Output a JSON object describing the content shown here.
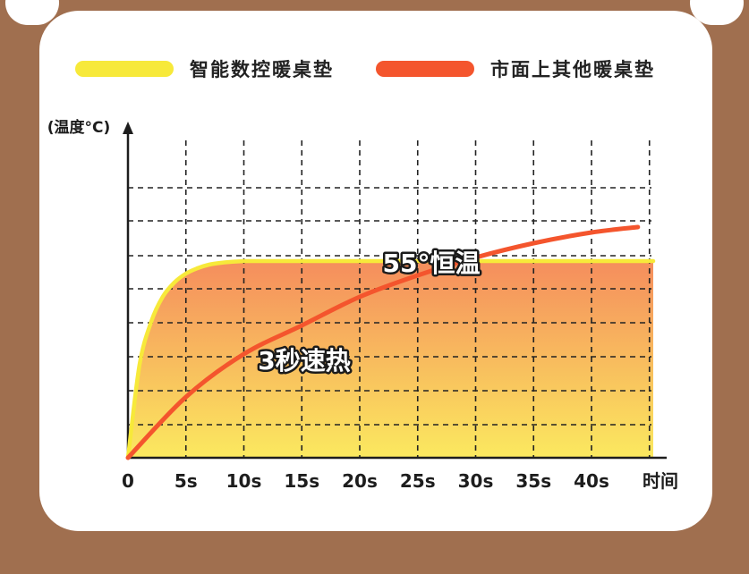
{
  "legend": [
    {
      "label": "智能数控暖桌垫",
      "color": "#f7e93a"
    },
    {
      "label": "市面上其他暖桌垫",
      "color": "#f4552d"
    }
  ],
  "chart_data": {
    "type": "line",
    "ylabel": "(温度°C)",
    "xlabel": "时间",
    "x_ticks": [
      "0",
      "5s",
      "10s",
      "15s",
      "20s",
      "25s",
      "30s",
      "35s",
      "40s"
    ],
    "grid": true,
    "series": [
      {
        "name": "智能数控暖桌垫",
        "color": "#f7e93a",
        "x": [
          0,
          1,
          2,
          3,
          4,
          5,
          6,
          7,
          8,
          9,
          10,
          45
        ],
        "y": [
          0,
          26,
          38,
          45,
          49,
          51.5,
          53,
          54,
          54.5,
          54.8,
          55,
          55
        ]
      },
      {
        "name": "市面上其他暖桌垫",
        "color": "#f4552d",
        "x": [
          0,
          5,
          10,
          15,
          20,
          25,
          30,
          35,
          40,
          44
        ],
        "y": [
          0,
          17,
          29,
          37,
          45,
          51,
          56,
          60,
          63,
          64.5
        ]
      }
    ],
    "annotations": [
      {
        "text": "55°恒温"
      },
      {
        "text": "3秒速热"
      }
    ],
    "colors": {
      "fill_top": "#f58d5d",
      "fill_bottom": "#fbe95f"
    }
  }
}
